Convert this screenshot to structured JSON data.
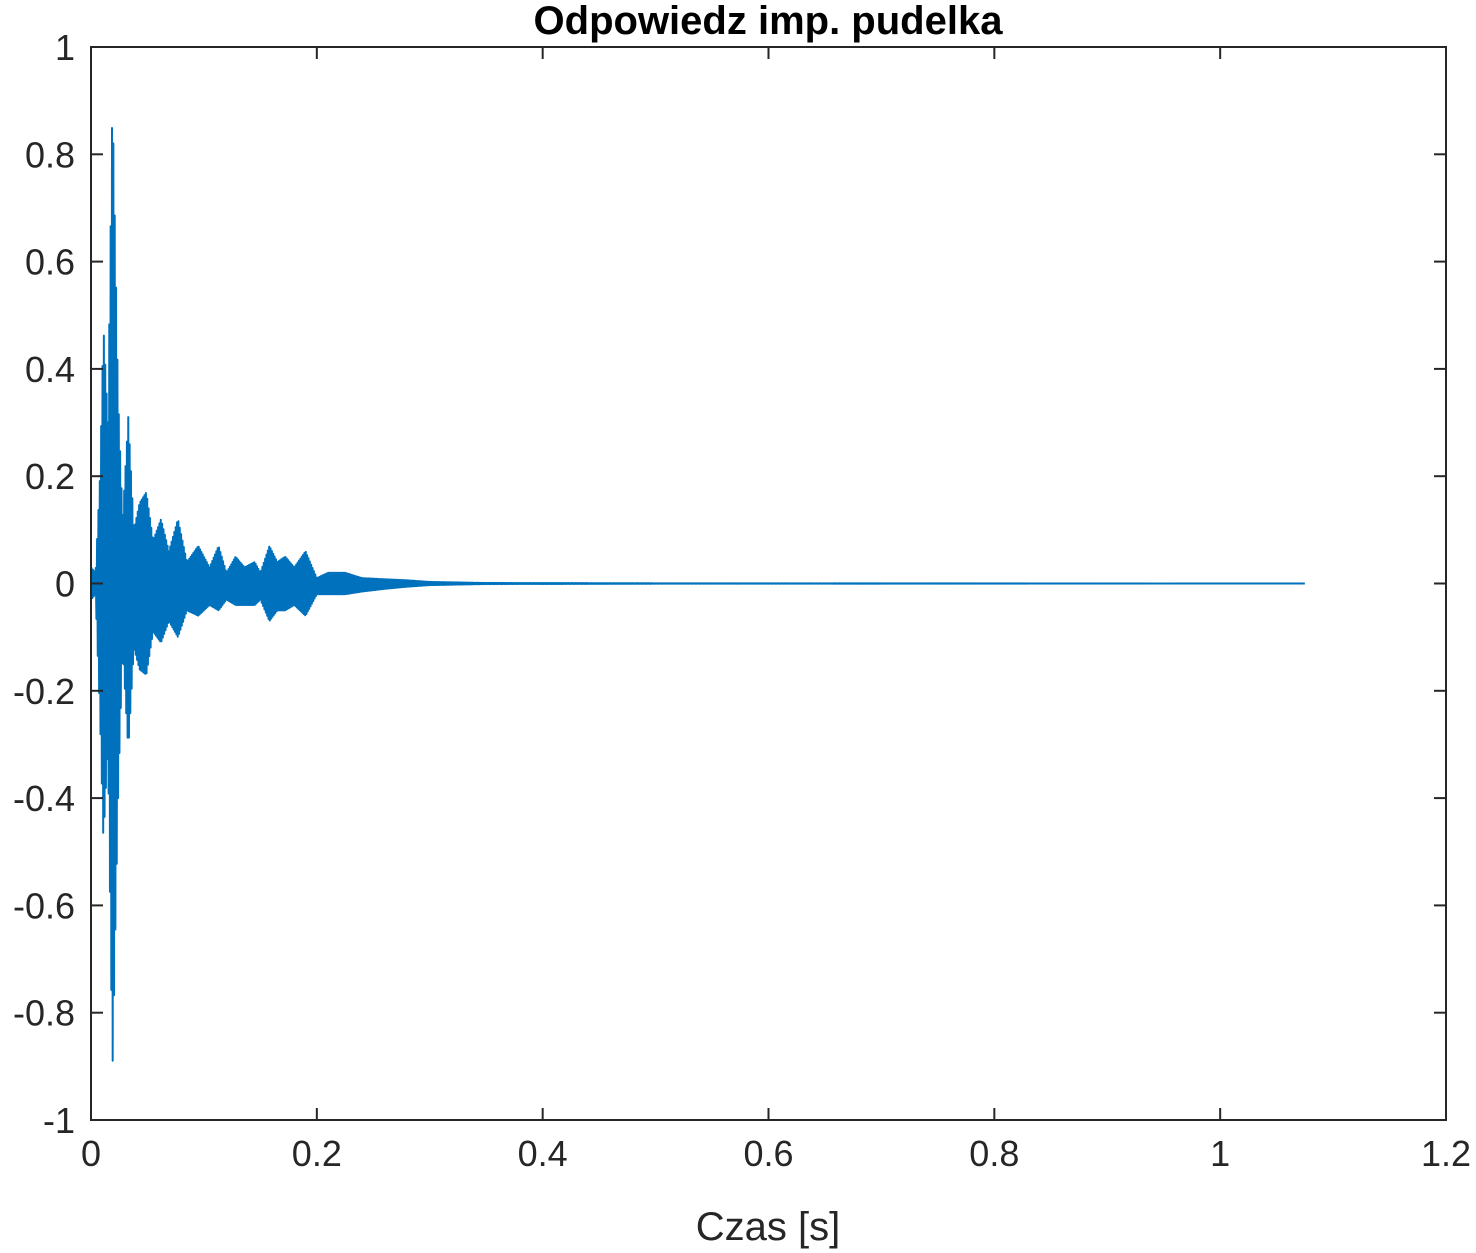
{
  "chart_data": {
    "type": "line",
    "title": "Odpowiedz imp. pudelka",
    "xlabel": "Czas [s]",
    "ylabel": "",
    "xlim": [
      0,
      1.2
    ],
    "ylim": [
      -1,
      1
    ],
    "xticks": [
      0,
      0.2,
      0.4,
      0.6,
      0.8,
      1,
      1.2
    ],
    "xtick_labels": [
      "0",
      "0.2",
      "0.4",
      "0.6",
      "0.8",
      "1",
      "1.2"
    ],
    "yticks": [
      1,
      0.8,
      0.6,
      0.4,
      0.2,
      0,
      -0.2,
      -0.4,
      -0.6,
      -0.8,
      -1
    ],
    "ytick_labels": [
      "1",
      "0.8",
      "0.6",
      "0.4",
      "0.2",
      "0",
      "-0.2",
      "-0.4",
      "-0.6",
      "-0.8",
      "-1"
    ],
    "grid": false,
    "series": [
      {
        "color": "#0072BD",
        "x_end": 1.075,
        "envelope": [
          {
            "t": 0.0,
            "max": 0.03,
            "min": -0.03
          },
          {
            "t": 0.004,
            "max": 0.02,
            "min": -0.02
          },
          {
            "t": 0.008,
            "max": 0.2,
            "min": -0.25
          },
          {
            "t": 0.011,
            "max": 0.48,
            "min": -0.48
          },
          {
            "t": 0.015,
            "max": 0.3,
            "min": -0.3
          },
          {
            "t": 0.019,
            "max": 0.91,
            "min": -0.91
          },
          {
            "t": 0.024,
            "max": 0.35,
            "min": -0.4
          },
          {
            "t": 0.028,
            "max": 0.12,
            "min": -0.12
          },
          {
            "t": 0.033,
            "max": 0.31,
            "min": -0.31
          },
          {
            "t": 0.038,
            "max": 0.1,
            "min": -0.12
          },
          {
            "t": 0.043,
            "max": 0.15,
            "min": -0.16
          },
          {
            "t": 0.049,
            "max": 0.17,
            "min": -0.17
          },
          {
            "t": 0.055,
            "max": 0.08,
            "min": -0.09
          },
          {
            "t": 0.062,
            "max": 0.12,
            "min": -0.11
          },
          {
            "t": 0.069,
            "max": 0.06,
            "min": -0.07
          },
          {
            "t": 0.077,
            "max": 0.12,
            "min": -0.1
          },
          {
            "t": 0.085,
            "max": 0.04,
            "min": -0.05
          },
          {
            "t": 0.095,
            "max": 0.07,
            "min": -0.06
          },
          {
            "t": 0.105,
            "max": 0.03,
            "min": -0.04
          },
          {
            "t": 0.113,
            "max": 0.07,
            "min": -0.05
          },
          {
            "t": 0.12,
            "max": 0.02,
            "min": -0.03
          },
          {
            "t": 0.128,
            "max": 0.05,
            "min": -0.04
          },
          {
            "t": 0.136,
            "max": 0.03,
            "min": -0.04
          },
          {
            "t": 0.145,
            "max": 0.04,
            "min": -0.04
          },
          {
            "t": 0.15,
            "max": 0.02,
            "min": -0.03
          },
          {
            "t": 0.158,
            "max": 0.07,
            "min": -0.07
          },
          {
            "t": 0.165,
            "max": 0.04,
            "min": -0.05
          },
          {
            "t": 0.172,
            "max": 0.05,
            "min": -0.05
          },
          {
            "t": 0.18,
            "max": 0.03,
            "min": -0.04
          },
          {
            "t": 0.19,
            "max": 0.06,
            "min": -0.06
          },
          {
            "t": 0.2,
            "max": 0.01,
            "min": -0.02
          },
          {
            "t": 0.21,
            "max": 0.02,
            "min": -0.02
          },
          {
            "t": 0.225,
            "max": 0.02,
            "min": -0.02
          },
          {
            "t": 0.24,
            "max": 0.01,
            "min": -0.015
          },
          {
            "t": 0.26,
            "max": 0.008,
            "min": -0.01
          },
          {
            "t": 0.28,
            "max": 0.006,
            "min": -0.006
          },
          {
            "t": 0.3,
            "max": 0.003,
            "min": -0.003
          },
          {
            "t": 0.35,
            "max": 0.001,
            "min": -0.001
          },
          {
            "t": 0.5,
            "max": 0.0005,
            "min": -0.0005
          },
          {
            "t": 1.075,
            "max": 0.0,
            "min": 0.0
          }
        ]
      }
    ]
  }
}
